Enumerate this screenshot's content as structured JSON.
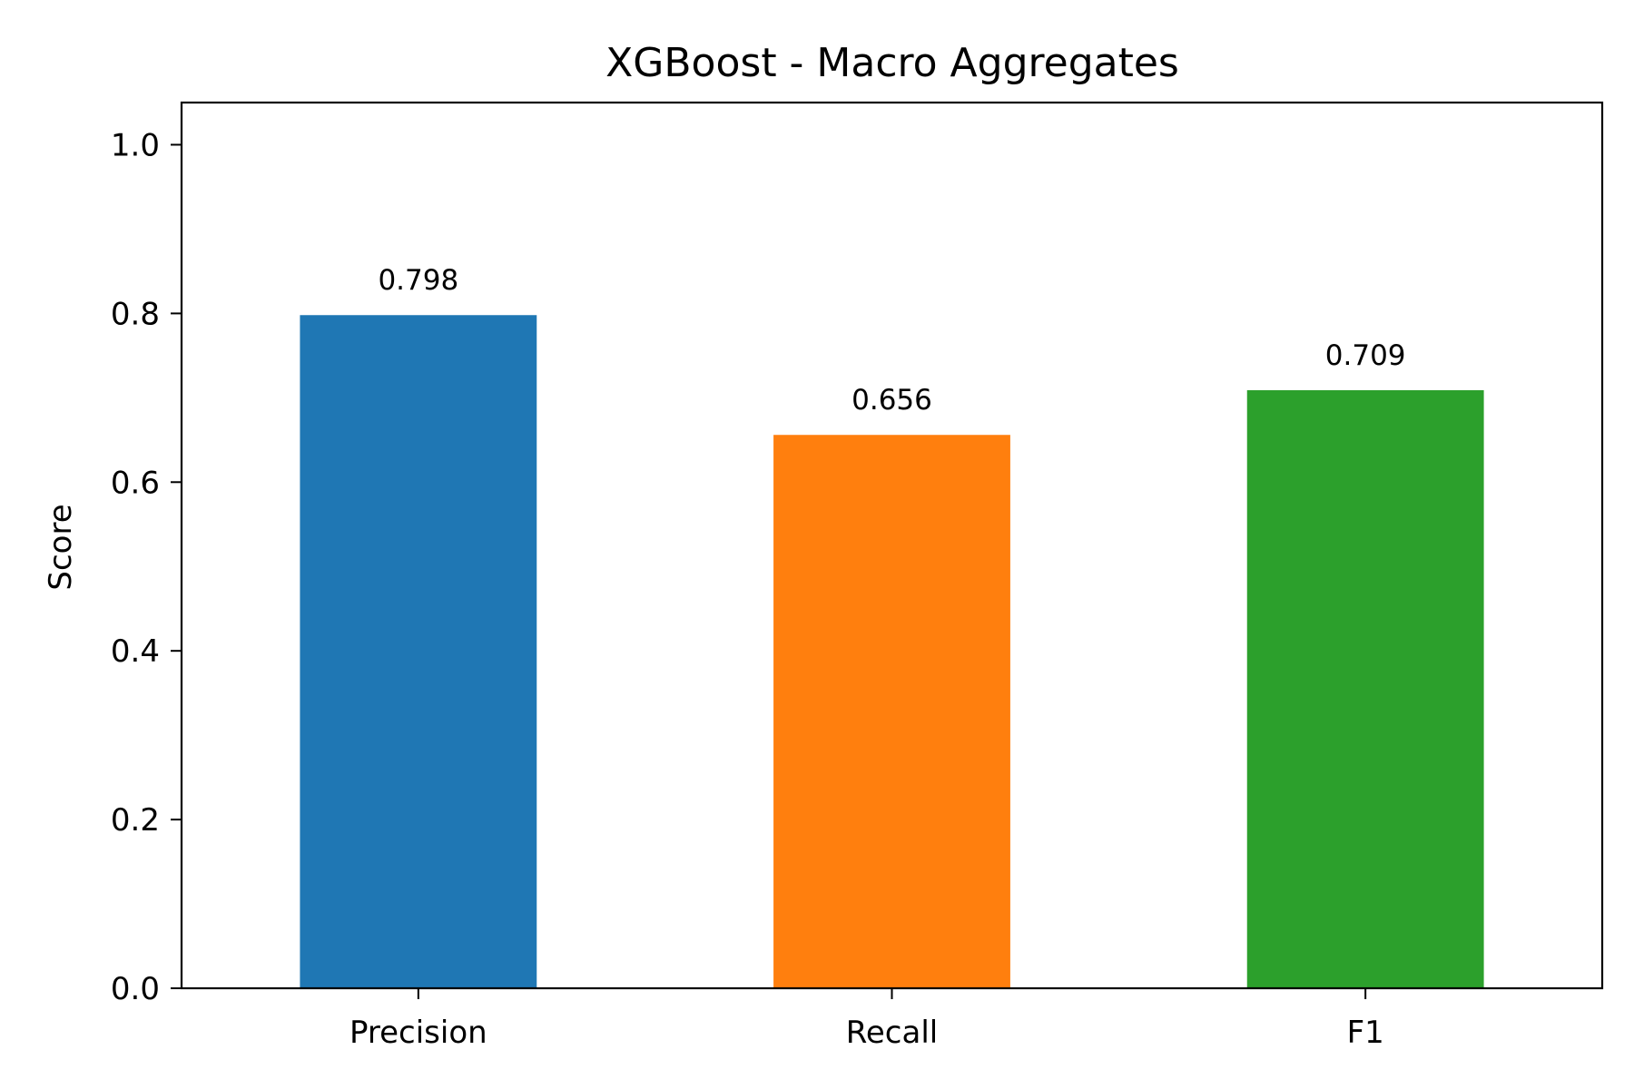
{
  "chart_data": {
    "type": "bar",
    "title": "XGBoost - Macro Aggregates",
    "xlabel": "",
    "ylabel": "Score",
    "categories": [
      "Precision",
      "Recall",
      "F1"
    ],
    "values": [
      0.798,
      0.656,
      0.709
    ],
    "value_labels": [
      "0.798",
      "0.656",
      "0.709"
    ],
    "colors": [
      "#1f77b4",
      "#ff7f0e",
      "#2ca02c"
    ],
    "ylim": [
      0,
      1.05
    ],
    "yticks": [
      0.0,
      0.2,
      0.4,
      0.6,
      0.8,
      1.0
    ],
    "ytick_labels": [
      "0.0",
      "0.2",
      "0.4",
      "0.6",
      "0.8",
      "1.0"
    ],
    "grid": false,
    "legend": "none"
  }
}
